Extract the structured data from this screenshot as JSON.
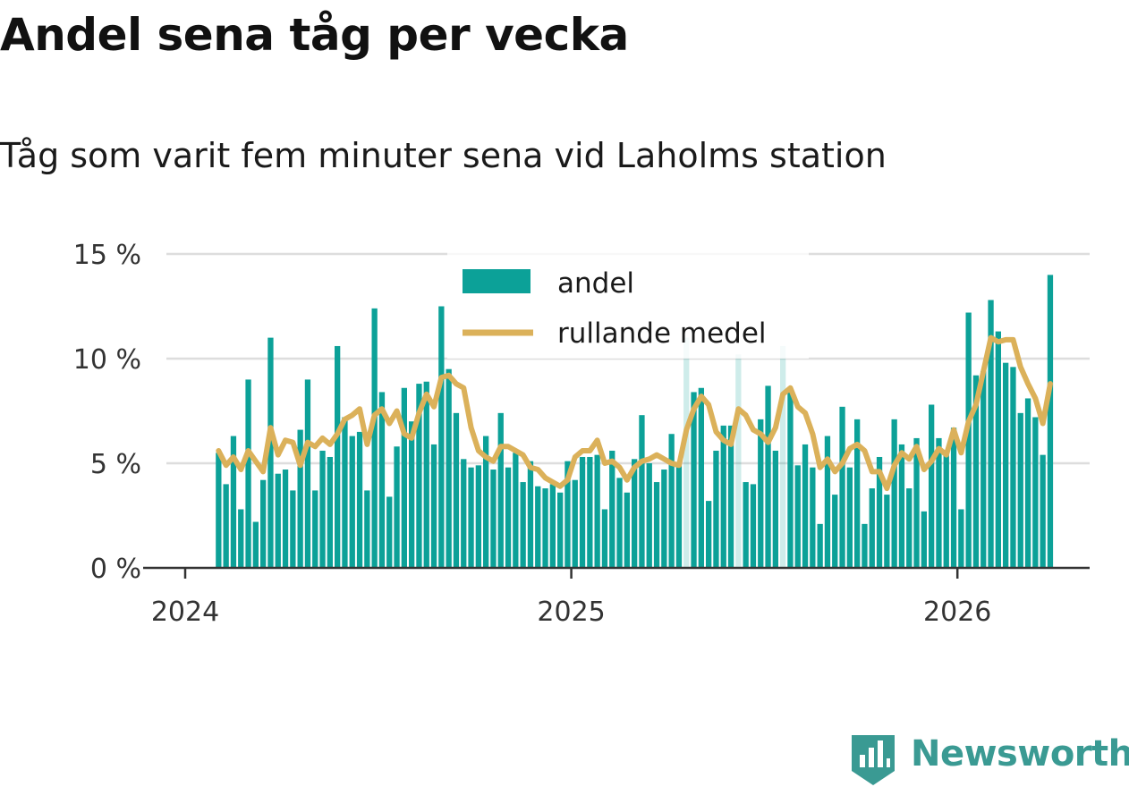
{
  "title": "Andel sena tåg per vecka",
  "subtitle": "Tåg som varit fem minuter sena vid Laholms station",
  "brand": {
    "name": "Newsworthy"
  },
  "colors": {
    "bar": "#0ca198",
    "line": "#dbb15a",
    "grid": "#dddddd",
    "axis": "#333333",
    "brand": "#3a9a93"
  },
  "chart_data": {
    "type": "bar",
    "title": "Andel sena tåg per vecka",
    "subtitle": "Tåg som varit fem minuter sena vid Laholms station",
    "ylim": [
      0,
      15
    ],
    "yticks": [
      0,
      5,
      10,
      15
    ],
    "ytick_labels": [
      "0 %",
      "5 %",
      "10 %",
      "15 %"
    ],
    "x_start": "2024-01-01",
    "x_end": "2026-04-20",
    "first_week_offset": 4,
    "xticks": [
      {
        "label": "2024",
        "week": 0
      },
      {
        "label": "2025",
        "week": 52
      },
      {
        "label": "2026",
        "week": 104
      }
    ],
    "legend": [
      {
        "label": "andel",
        "kind": "bar"
      },
      {
        "label": "rullande medel",
        "kind": "line"
      }
    ],
    "series": [
      {
        "name": "andel",
        "values": [
          5.5,
          4.0,
          6.3,
          2.8,
          9.0,
          2.2,
          4.2,
          11.0,
          4.5,
          4.7,
          3.7,
          6.6,
          9.0,
          3.7,
          5.6,
          5.3,
          10.6,
          7.2,
          6.3,
          6.5,
          3.7,
          12.4,
          8.4,
          3.4,
          5.8,
          8.6,
          7.0,
          8.8,
          8.9,
          5.9,
          12.5,
          9.5,
          7.4,
          5.2,
          4.8,
          4.9,
          6.3,
          4.7,
          7.4,
          4.8,
          5.5,
          4.1,
          5.1,
          3.9,
          3.8,
          4.0,
          3.6,
          5.1,
          4.2,
          5.3,
          5.3,
          5.4,
          2.8,
          5.6,
          4.3,
          3.6,
          5.2,
          7.3,
          5.0,
          4.1,
          4.7,
          6.4,
          5.0,
          11.0,
          8.4,
          8.6,
          3.2,
          5.6,
          6.8,
          6.8,
          10.2,
          4.1,
          4.0,
          7.1,
          8.7,
          5.6,
          10.6,
          8.5,
          4.9,
          5.9,
          4.8,
          2.1,
          6.3,
          3.5,
          7.7,
          4.8,
          7.1,
          2.1,
          3.8,
          5.3,
          3.5,
          7.1,
          5.9,
          3.8,
          6.2,
          2.7,
          7.8,
          6.2,
          5.4,
          6.7,
          2.8,
          12.2,
          9.2,
          9.4,
          12.8,
          11.3,
          9.8,
          9.6,
          7.4,
          8.1,
          7.2,
          5.4,
          14.0
        ],
        "hidden_weeks": [
          63,
          70,
          76
        ]
      },
      {
        "name": "rullande medel",
        "values": [
          5.6,
          4.9,
          5.3,
          4.7,
          5.6,
          5.1,
          4.6,
          6.7,
          5.4,
          6.1,
          6.0,
          4.9,
          6.0,
          5.8,
          6.2,
          5.9,
          6.4,
          7.1,
          7.3,
          7.6,
          5.9,
          7.3,
          7.6,
          6.9,
          7.5,
          6.4,
          6.2,
          7.4,
          8.3,
          7.7,
          9.1,
          9.2,
          8.8,
          8.6,
          6.7,
          5.6,
          5.3,
          5.1,
          5.8,
          5.8,
          5.6,
          5.4,
          4.8,
          4.7,
          4.3,
          4.1,
          3.9,
          4.2,
          5.3,
          5.6,
          5.6,
          6.1,
          5.0,
          5.1,
          4.8,
          4.2,
          4.8,
          5.1,
          5.2,
          5.4,
          5.2,
          5.0,
          4.9,
          6.6,
          7.6,
          8.2,
          7.8,
          6.5,
          6.1,
          5.9,
          7.6,
          7.3,
          6.6,
          6.4,
          6.0,
          6.7,
          8.3,
          8.6,
          7.7,
          7.4,
          6.4,
          4.8,
          5.2,
          4.6,
          5.0,
          5.7,
          5.9,
          5.6,
          4.6,
          4.6,
          3.8,
          4.9,
          5.5,
          5.2,
          5.8,
          4.7,
          5.1,
          5.7,
          5.4,
          6.6,
          5.5,
          7.0,
          7.8,
          9.4,
          11.0,
          10.8,
          10.9,
          10.9,
          9.6,
          8.8,
          8.1,
          6.9,
          8.8
        ]
      }
    ]
  }
}
